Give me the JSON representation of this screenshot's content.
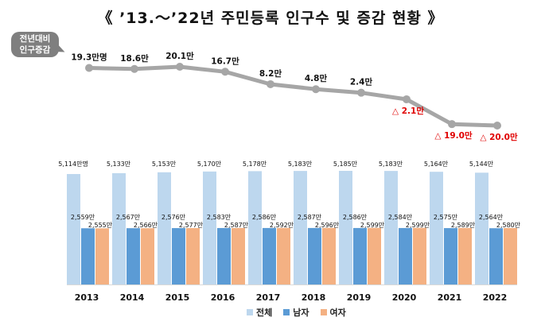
{
  "title": "《 ’13.～’22년 주민등록 인구수 및 증감 현황 》",
  "bubble": {
    "line1": "전년대비",
    "line2": "인구증감"
  },
  "colors": {
    "total": "#bdd7ee",
    "male": "#5b9bd5",
    "female": "#f4b183",
    "line": "#a6a6a6",
    "negative": "#e00000",
    "text": "#111111"
  },
  "chart_data": [
    {
      "type": "line",
      "title": "전년대비 인구증감",
      "x": [
        "2013",
        "2014",
        "2015",
        "2016",
        "2017",
        "2018",
        "2019",
        "2020",
        "2021",
        "2022"
      ],
      "values": [
        19.3,
        18.6,
        20.1,
        16.7,
        8.2,
        4.8,
        2.4,
        -2.1,
        -19.0,
        -20.0
      ],
      "labels": [
        "19.3만명",
        "18.6만",
        "20.1만",
        "16.7만",
        "8.2만",
        "4.8만",
        "2.4만",
        "△ 2.1만",
        "△ 19.0만",
        "△ 20.0만"
      ],
      "unit": "만명"
    },
    {
      "type": "bar",
      "categories": [
        "2013",
        "2014",
        "2015",
        "2016",
        "2017",
        "2018",
        "2019",
        "2020",
        "2021",
        "2022"
      ],
      "series": [
        {
          "name": "전체",
          "values": [
            5114,
            5133,
            5153,
            5170,
            5178,
            5183,
            5185,
            5183,
            5164,
            5144
          ],
          "labels": [
            "5,114만명",
            "5,133만",
            "5,153만",
            "5,170만",
            "5,178만",
            "5,183만",
            "5,185만",
            "5,183만",
            "5,164만",
            "5,144만"
          ]
        },
        {
          "name": "남자",
          "values": [
            2559,
            2567,
            2576,
            2583,
            2586,
            2587,
            2586,
            2584,
            2575,
            2564
          ],
          "labels": [
            "2,559만",
            "2,567만",
            "2,576만",
            "2,583만",
            "2,586만",
            "2,587만",
            "2,586만",
            "2,584만",
            "2,575만",
            "2,564만"
          ]
        },
        {
          "name": "여자",
          "values": [
            2555,
            2566,
            2577,
            2587,
            2592,
            2596,
            2599,
            2599,
            2589,
            2580
          ],
          "labels": [
            "2,555만",
            "2,566만",
            "2,577만",
            "2,587만",
            "2,592만",
            "2,596만",
            "2,599만",
            "2,599만",
            "2,589만",
            "2,580만"
          ]
        }
      ],
      "unit": "만명"
    }
  ]
}
